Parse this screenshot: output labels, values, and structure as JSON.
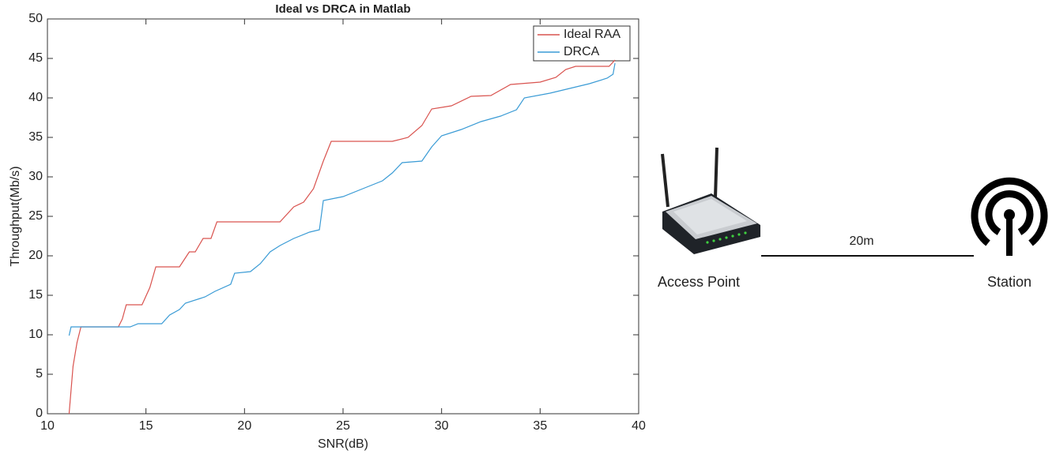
{
  "chart_data": {
    "type": "line",
    "title": "Ideal vs DRCA in Matlab",
    "x_label": "SNR(dB)",
    "y_label": "Throughput(Mb/s)",
    "xlim": [
      10,
      40
    ],
    "xticks": [
      10,
      15,
      20,
      25,
      30,
      35,
      40
    ],
    "ylim": [
      0,
      50
    ],
    "yticks": [
      0,
      5,
      10,
      15,
      20,
      25,
      30,
      35,
      40,
      45,
      50
    ],
    "grid": false,
    "legend": "upper right",
    "series": [
      {
        "name": "Ideal RAA",
        "color": "#d9534f",
        "x": [
          11.1,
          11.3,
          11.5,
          11.7,
          13.6,
          13.8,
          14.0,
          14.8,
          15.2,
          15.5,
          16.7,
          17.2,
          17.5,
          17.9,
          18.3,
          18.6,
          21.8,
          22.5,
          23.0,
          23.5,
          24.0,
          24.4,
          27.5,
          28.3,
          29.0,
          29.5,
          30.5,
          31.5,
          32.5,
          33.5,
          35.0,
          35.8,
          36.3,
          36.8,
          38.5,
          38.8
        ],
        "values": [
          0,
          6,
          9,
          11,
          11,
          12,
          13.8,
          13.8,
          16,
          18.6,
          18.6,
          20.5,
          20.5,
          22.2,
          22.2,
          24.3,
          24.3,
          26.2,
          26.8,
          28.5,
          32,
          34.5,
          34.5,
          35,
          36.5,
          38.6,
          39,
          40.2,
          40.3,
          41.7,
          42,
          42.6,
          43.6,
          44,
          44,
          44.8
        ]
      },
      {
        "name": "DRCA",
        "color": "#3a9bd5",
        "x": [
          11.1,
          11.2,
          14.2,
          14.6,
          15.8,
          16.2,
          16.7,
          17.0,
          18.0,
          18.5,
          19.3,
          19.5,
          20.3,
          20.8,
          21.3,
          21.8,
          22.5,
          23.3,
          23.8,
          24.0,
          25.0,
          26.0,
          27.0,
          27.5,
          28.0,
          29.0,
          29.5,
          30.0,
          31.0,
          32.0,
          33.0,
          33.8,
          34.2,
          35.5,
          36.5,
          37.5,
          38.4,
          38.7,
          38.8
        ],
        "values": [
          9.9,
          11,
          11,
          11.4,
          11.4,
          12.5,
          13.2,
          14,
          14.8,
          15.5,
          16.4,
          17.8,
          18,
          19,
          20.5,
          21.3,
          22.2,
          23,
          23.3,
          27,
          27.5,
          28.5,
          29.5,
          30.5,
          31.8,
          32,
          33.8,
          35.2,
          36,
          37,
          37.7,
          38.5,
          40,
          40.6,
          41.2,
          41.8,
          42.5,
          43,
          44.4
        ]
      }
    ]
  },
  "diagram": {
    "access_point": "Access Point",
    "station": "Station",
    "distance": "20m"
  }
}
